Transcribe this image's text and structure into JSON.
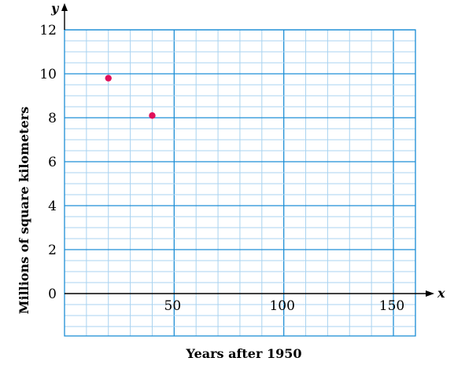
{
  "chart_data": {
    "type": "scatter",
    "title": "",
    "xlabel": "Years after 1950",
    "ylabel": "Millions of square kilometers",
    "x_axis_var": "x",
    "y_axis_var": "y",
    "xlim": [
      -20,
      160
    ],
    "ylim": [
      -2,
      12.5
    ],
    "x_ticks": [
      50,
      100,
      150
    ],
    "y_ticks": [
      0,
      2,
      4,
      6,
      8,
      10,
      12
    ],
    "x_tick_labels": [
      "50",
      "100",
      "150"
    ],
    "y_tick_labels": [
      "0",
      "2",
      "4",
      "6",
      "8",
      "10",
      "12"
    ],
    "grid": true,
    "series": [
      {
        "color": "#e0105a",
        "points": [
          {
            "x": 20,
            "y": 9.8
          },
          {
            "x": 40,
            "y": 8.1
          }
        ]
      }
    ]
  }
}
